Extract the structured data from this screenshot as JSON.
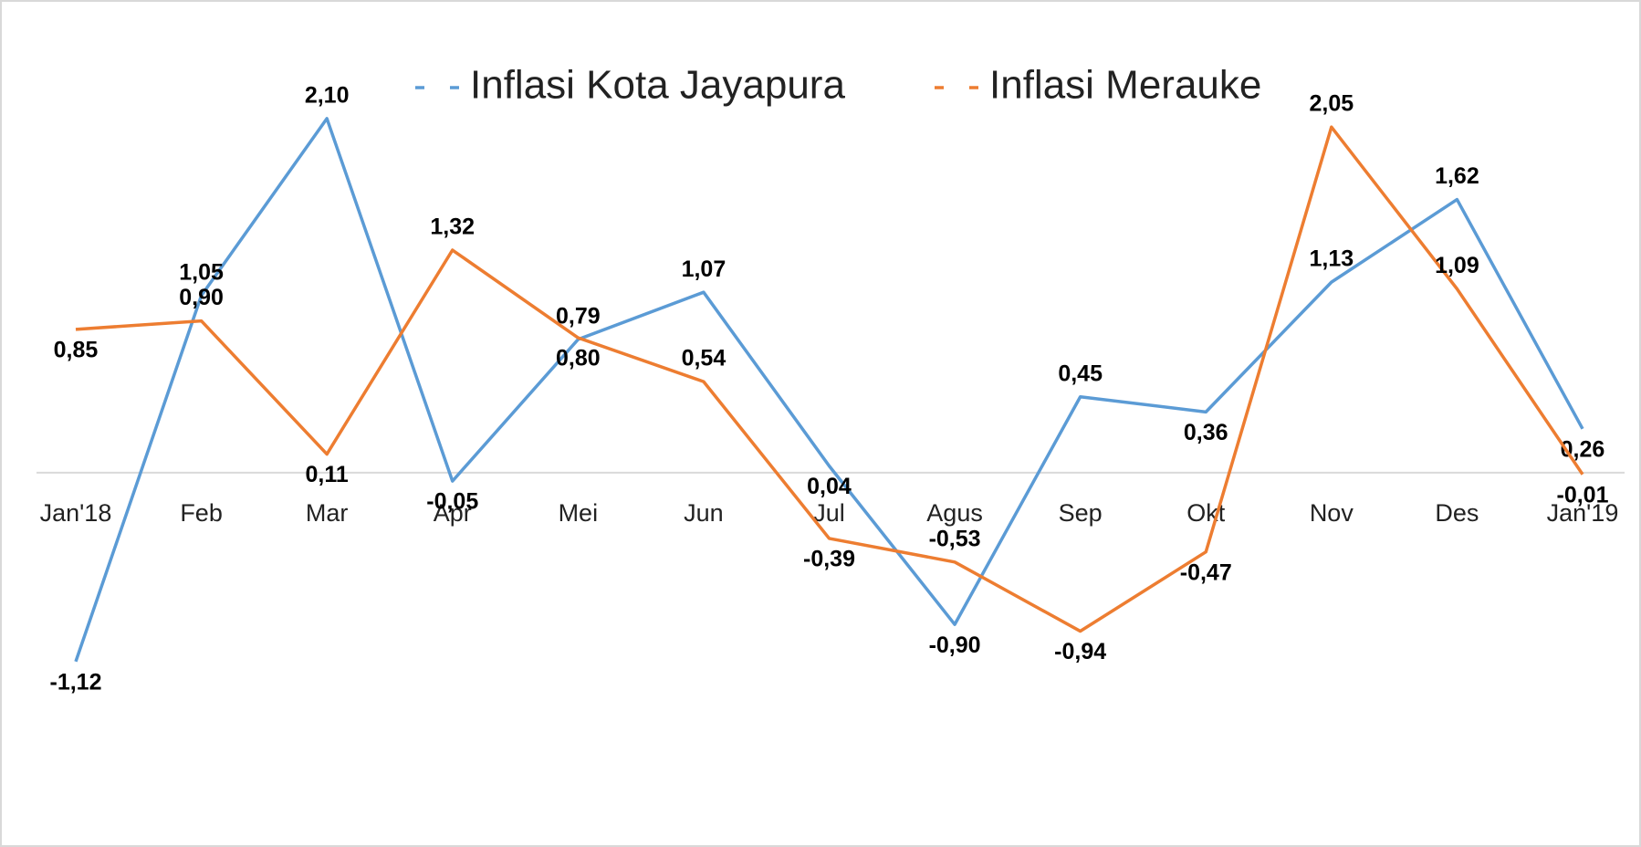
{
  "chart_data": {
    "type": "line",
    "categories": [
      "Jan'18",
      "Feb",
      "Mar",
      "Apr",
      "Mei",
      "Jun",
      "Jul",
      "Agus",
      "Sep",
      "Okt",
      "Nov",
      "Des",
      "Jan'19"
    ],
    "series": [
      {
        "name": "Inflasi Kota Jayapura",
        "color": "#5b9bd5",
        "values": [
          -1.12,
          1.05,
          2.1,
          -0.05,
          0.79,
          1.07,
          0.04,
          -0.9,
          0.45,
          0.36,
          1.13,
          1.62,
          0.26
        ],
        "value_labels": [
          "-1,12",
          "1,05",
          "2,10",
          "-0,05",
          "0,79",
          "1,07",
          "0,04",
          "-0,90",
          "0,45",
          "0,36",
          "1,13",
          "1,62",
          "0,26"
        ]
      },
      {
        "name": "Inflasi Merauke",
        "color": "#ed7d31",
        "values": [
          0.85,
          0.9,
          0.11,
          1.32,
          0.8,
          0.54,
          -0.39,
          -0.53,
          -0.94,
          -0.47,
          2.05,
          1.09,
          -0.01
        ],
        "value_labels": [
          "0,85",
          "0,90",
          "0,11",
          "1,32",
          "0,80",
          "0,54",
          "-0,39",
          "-0,53",
          "-0,94",
          "-0,47",
          "2,05",
          "1,09",
          "-0,01"
        ]
      }
    ],
    "ylim": [
      -1.5,
      2.5
    ],
    "legend": "top"
  }
}
